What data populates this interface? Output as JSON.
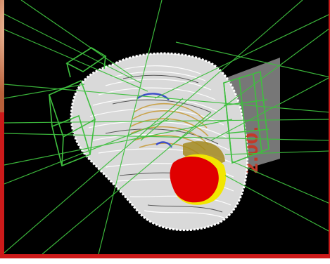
{
  "scene": {
    "overlay_text": "2.00.",
    "colors": {
      "background": "#000000",
      "border": "#cc1a1a",
      "beam_lines": "#3fbf3f",
      "contour_white": "#ffffff",
      "body_fill": "#d9d9d9",
      "target_red": "#e00000",
      "target_yellow": "#f2e600",
      "contour_tan": "#c9a24a",
      "contour_blue": "#3b4cc9",
      "panel_gray": "#8c8c8c",
      "overlay_text": "#c23a2a"
    }
  }
}
